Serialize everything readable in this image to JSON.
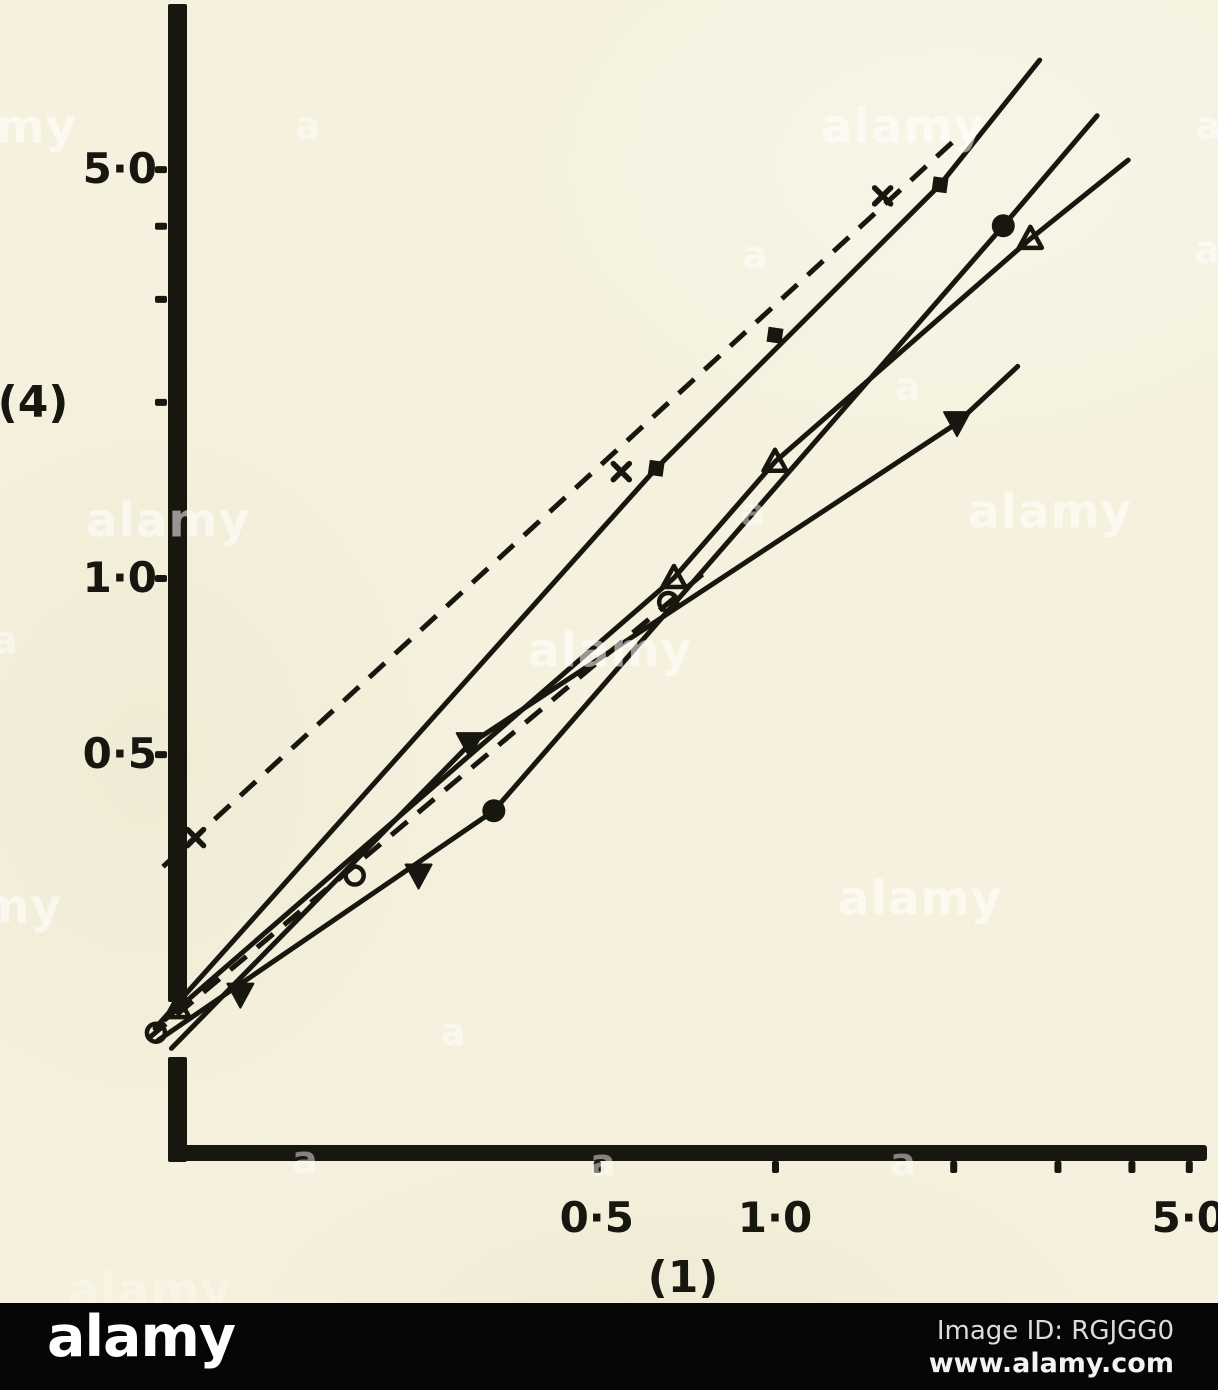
{
  "figure": {
    "description": "Scanned log-log plot from an old journal figure, stock-photo page"
  },
  "watermark": {
    "text": "alamy",
    "letter": "a"
  },
  "footer": {
    "logo": "alamy",
    "image_id_label": "Image ID: RGJGG0",
    "website": "www.alamy.com"
  },
  "colors": {
    "paper": "#f5f1de",
    "ink": "#17160f",
    "footer_bg": "#060606",
    "watermark": "#ffffff"
  },
  "chart_data": {
    "type": "scatter",
    "title": "",
    "xlabel": "(1)",
    "ylabel": "(4)",
    "x_scale": "log",
    "y_scale": "log",
    "xlim": [
      0.08,
      5.5
    ],
    "ylim": [
      0.13,
      9
    ],
    "grid": false,
    "legend": "none",
    "x_ticks": [
      {
        "v": 0.5,
        "label": "0·5"
      },
      {
        "v": 1.0,
        "label": "1·0"
      },
      {
        "v": 2.0,
        "label": ""
      },
      {
        "v": 3.0,
        "label": ""
      },
      {
        "v": 4.0,
        "label": ""
      },
      {
        "v": 5.0,
        "label": "5·0"
      }
    ],
    "y_ticks": [
      {
        "v": 5.0,
        "label": "5·0"
      },
      {
        "v": 4.0,
        "label": ""
      },
      {
        "v": 3.0,
        "label": ""
      },
      {
        "v": 2.0,
        "label": ""
      },
      {
        "v": 1.0,
        "label": "1·0"
      },
      {
        "v": 0.5,
        "label": "0·5"
      }
    ],
    "series": [
      {
        "name": "cross-dashed",
        "marker": "cross",
        "line_style": "dashed",
        "line": [
          [
            0.0925,
            0.321
          ],
          [
            2.037,
            5.67
          ]
        ],
        "points": [
          [
            0.105,
            0.36
          ],
          [
            0.55,
            1.52
          ],
          [
            1.52,
            4.5
          ]
        ]
      },
      {
        "name": "open-circle-dashed",
        "marker": "circle-open",
        "line_style": "dashed",
        "line": [
          [
            0.0879,
            0.164
          ],
          [
            0.777,
            1.04
          ]
        ],
        "points": [
          [
            0.09,
            0.167
          ],
          [
            0.195,
            0.31
          ],
          [
            0.66,
            0.91
          ]
        ]
      },
      {
        "name": "filled-square-solid",
        "marker": "square",
        "line_style": "solid",
        "line": [
          [
            0.0897,
            0.17
          ],
          [
            0.63,
            1.54
          ],
          [
            1.9,
            4.7
          ],
          [
            2.8,
            7.68
          ]
        ],
        "points": [
          [
            0.63,
            1.54
          ],
          [
            1.0,
            2.6
          ],
          [
            1.9,
            4.7
          ]
        ]
      },
      {
        "name": "filled-circle-solid",
        "marker": "circle-filled",
        "line_style": "solid",
        "line": [
          [
            0.0907,
            0.162
          ],
          [
            0.335,
            0.4
          ],
          [
            2.43,
            4.0
          ],
          [
            3.5,
            6.17
          ]
        ],
        "points": [
          [
            0.335,
            0.4
          ],
          [
            2.43,
            4.0
          ]
        ]
      },
      {
        "name": "open-triangle-solid",
        "marker": "triangle-open",
        "line_style": "solid",
        "line": [
          [
            0.0934,
            0.176
          ],
          [
            0.675,
            1.0
          ],
          [
            1.0,
            1.58
          ],
          [
            2.7,
            3.8
          ],
          [
            3.95,
            5.18
          ]
        ],
        "points": [
          [
            0.098,
            0.184
          ],
          [
            0.675,
            1.0
          ],
          [
            1.0,
            1.58
          ],
          [
            2.7,
            3.8
          ]
        ]
      },
      {
        "name": "filled-triangle-solid",
        "marker": "triangle-down",
        "line_style": "solid",
        "line": [
          [
            0.0956,
            0.157
          ],
          [
            0.305,
            0.52
          ],
          [
            2.03,
            1.84
          ],
          [
            2.57,
            2.3
          ]
        ],
        "points": [
          [
            0.125,
            0.194
          ],
          [
            0.25,
            0.31
          ],
          [
            0.305,
            0.52
          ],
          [
            2.03,
            1.84
          ]
        ]
      }
    ]
  }
}
